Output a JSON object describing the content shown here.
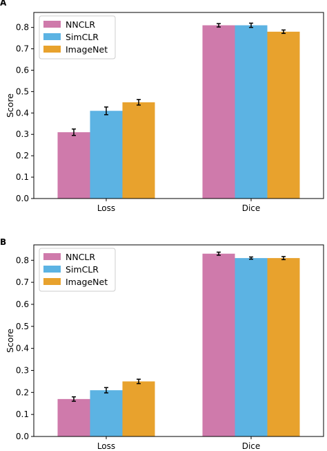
{
  "colors": {
    "NNCLR": "#cf7aab",
    "SimCLR": "#5cb3e3",
    "ImageNet": "#e8a22d"
  },
  "chart_data": [
    {
      "type": "bar",
      "panel": "A",
      "categories": [
        "Loss",
        "Dice"
      ],
      "ylabel": "Score",
      "ylim": [
        0,
        0.87
      ],
      "yticks": [
        "0.0",
        "0.1",
        "0.2",
        "0.3",
        "0.4",
        "0.5",
        "0.6",
        "0.7",
        "0.8"
      ],
      "legend_position": "top-left",
      "series": [
        {
          "name": "NNCLR",
          "values": [
            0.31,
            0.81
          ],
          "errors": [
            0.015,
            0.008
          ]
        },
        {
          "name": "SimCLR",
          "values": [
            0.41,
            0.81
          ],
          "errors": [
            0.018,
            0.01
          ]
        },
        {
          "name": "ImageNet",
          "values": [
            0.45,
            0.78
          ],
          "errors": [
            0.013,
            0.008
          ]
        }
      ]
    },
    {
      "type": "bar",
      "panel": "B",
      "categories": [
        "Loss",
        "Dice"
      ],
      "ylabel": "Score",
      "ylim": [
        0,
        0.87
      ],
      "yticks": [
        "0.0",
        "0.1",
        "0.2",
        "0.3",
        "0.4",
        "0.5",
        "0.6",
        "0.7",
        "0.8"
      ],
      "legend_position": "top-left",
      "series": [
        {
          "name": "NNCLR",
          "values": [
            0.17,
            0.83
          ],
          "errors": [
            0.01,
            0.007
          ]
        },
        {
          "name": "SimCLR",
          "values": [
            0.21,
            0.81
          ],
          "errors": [
            0.012,
            0.005
          ]
        },
        {
          "name": "ImageNet",
          "values": [
            0.25,
            0.81
          ],
          "errors": [
            0.01,
            0.007
          ]
        }
      ]
    }
  ]
}
